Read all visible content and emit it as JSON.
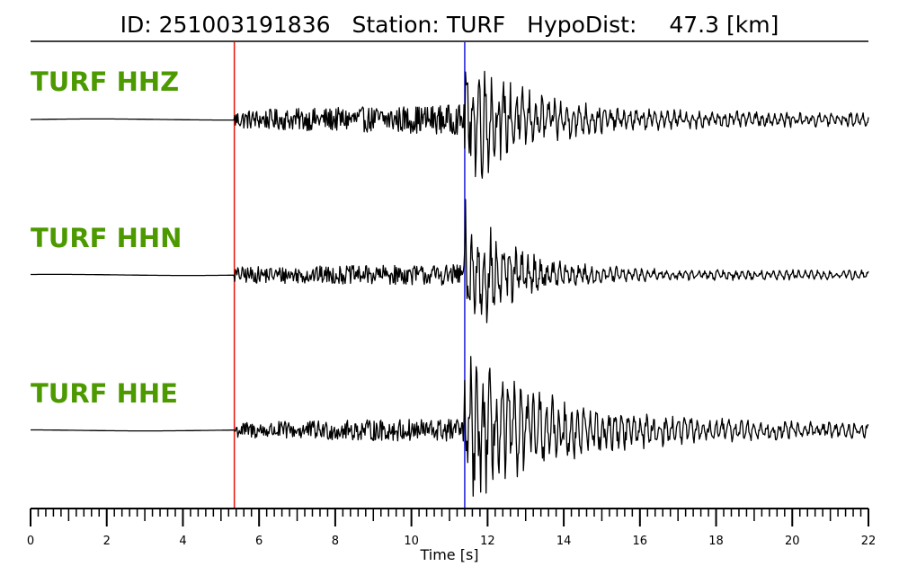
{
  "header": {
    "id_label": "ID:",
    "id_value": "251003191836",
    "station_label": "Station:",
    "station_value": "TURF",
    "hypodist_label": "HypoDist:",
    "hypodist_value": "47.3",
    "hypodist_unit": "[km]"
  },
  "colors": {
    "trace": "#000000",
    "p_pick": "#e8140a",
    "s_pick": "#1a1adb",
    "channel_label": "#4c9a00",
    "axis": "#000000"
  },
  "chart_data": {
    "type": "line",
    "xlabel": "Time [s]",
    "xlim": [
      0,
      22
    ],
    "x_ticks": [
      "0",
      "2",
      "4",
      "6",
      "8",
      "10",
      "12",
      "14",
      "16",
      "18",
      "20",
      "22"
    ],
    "minor_tick_step": 0.2,
    "picks": [
      {
        "phase": "P",
        "time": 5.35,
        "color": "#e8140a"
      },
      {
        "phase": "S",
        "time": 11.4,
        "color": "#1a1adb"
      }
    ],
    "series": [
      {
        "name": "TURF HHZ",
        "noise_end": 5.35,
        "noise_amp": 0.35,
        "coda_amp": 0.7,
        "burst_amp": 2.6,
        "burst_start": 11.4,
        "burst_decay": 1.6,
        "tail_amp": 0.3
      },
      {
        "name": "TURF HHN",
        "noise_end": 5.35,
        "noise_amp": 0.3,
        "coda_amp": 0.45,
        "burst_amp": 2.7,
        "burst_start": 11.4,
        "burst_decay": 1.3,
        "tail_amp": 0.2
      },
      {
        "name": "TURF HHE",
        "noise_end": 5.35,
        "noise_amp": 0.3,
        "coda_amp": 0.55,
        "burst_amp": 2.8,
        "burst_start": 11.4,
        "burst_decay": 2.4,
        "tail_amp": 0.3
      }
    ]
  }
}
